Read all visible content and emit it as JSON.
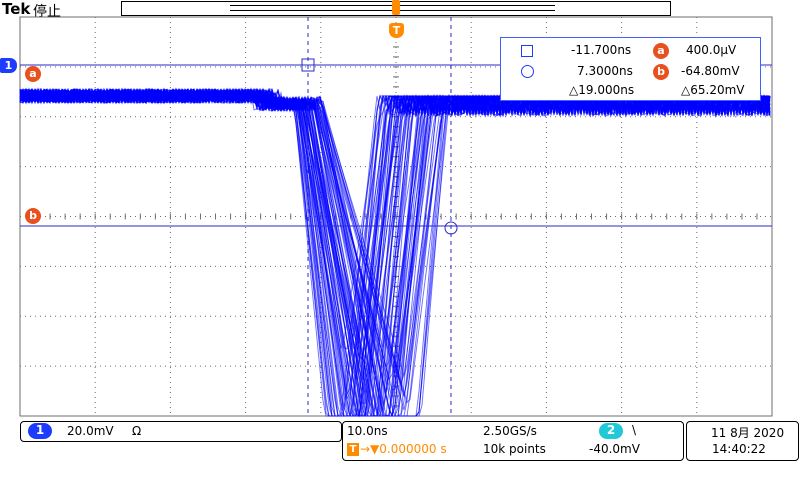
{
  "header": {
    "brand": "Tek",
    "run_state": "停止"
  },
  "markers": {
    "trigger_label": "T",
    "channel1_label": "1",
    "cursor_a": "a",
    "cursor_b": "b"
  },
  "readout": {
    "sq_time": "-11.700ns",
    "circ_time": "7.3000ns",
    "delta_time": "△19.000ns",
    "a_value": "400.0μV",
    "b_value": "-64.80mV",
    "delta_value": "△65.20mV"
  },
  "status": {
    "ch1_num": "1",
    "ch1_scale": "20.0mV",
    "ch1_coupling": "Ω",
    "timebase": "10.0ns",
    "sample_rate": "2.50GS/s",
    "trig_position": "→▼0.000000 s",
    "trig_badge": "T",
    "record_length": "10k points",
    "trig_source": "2",
    "trig_slope": "\\",
    "trig_level": "-40.0mV",
    "date": "11 8月 2020",
    "time": "14:40:22"
  },
  "colors": {
    "trace": "#0000ff",
    "cursor": "#2828c8",
    "grid": "#6e6e6e",
    "marker": "#ff8c00",
    "cursor_badge": "#e8501e"
  }
}
